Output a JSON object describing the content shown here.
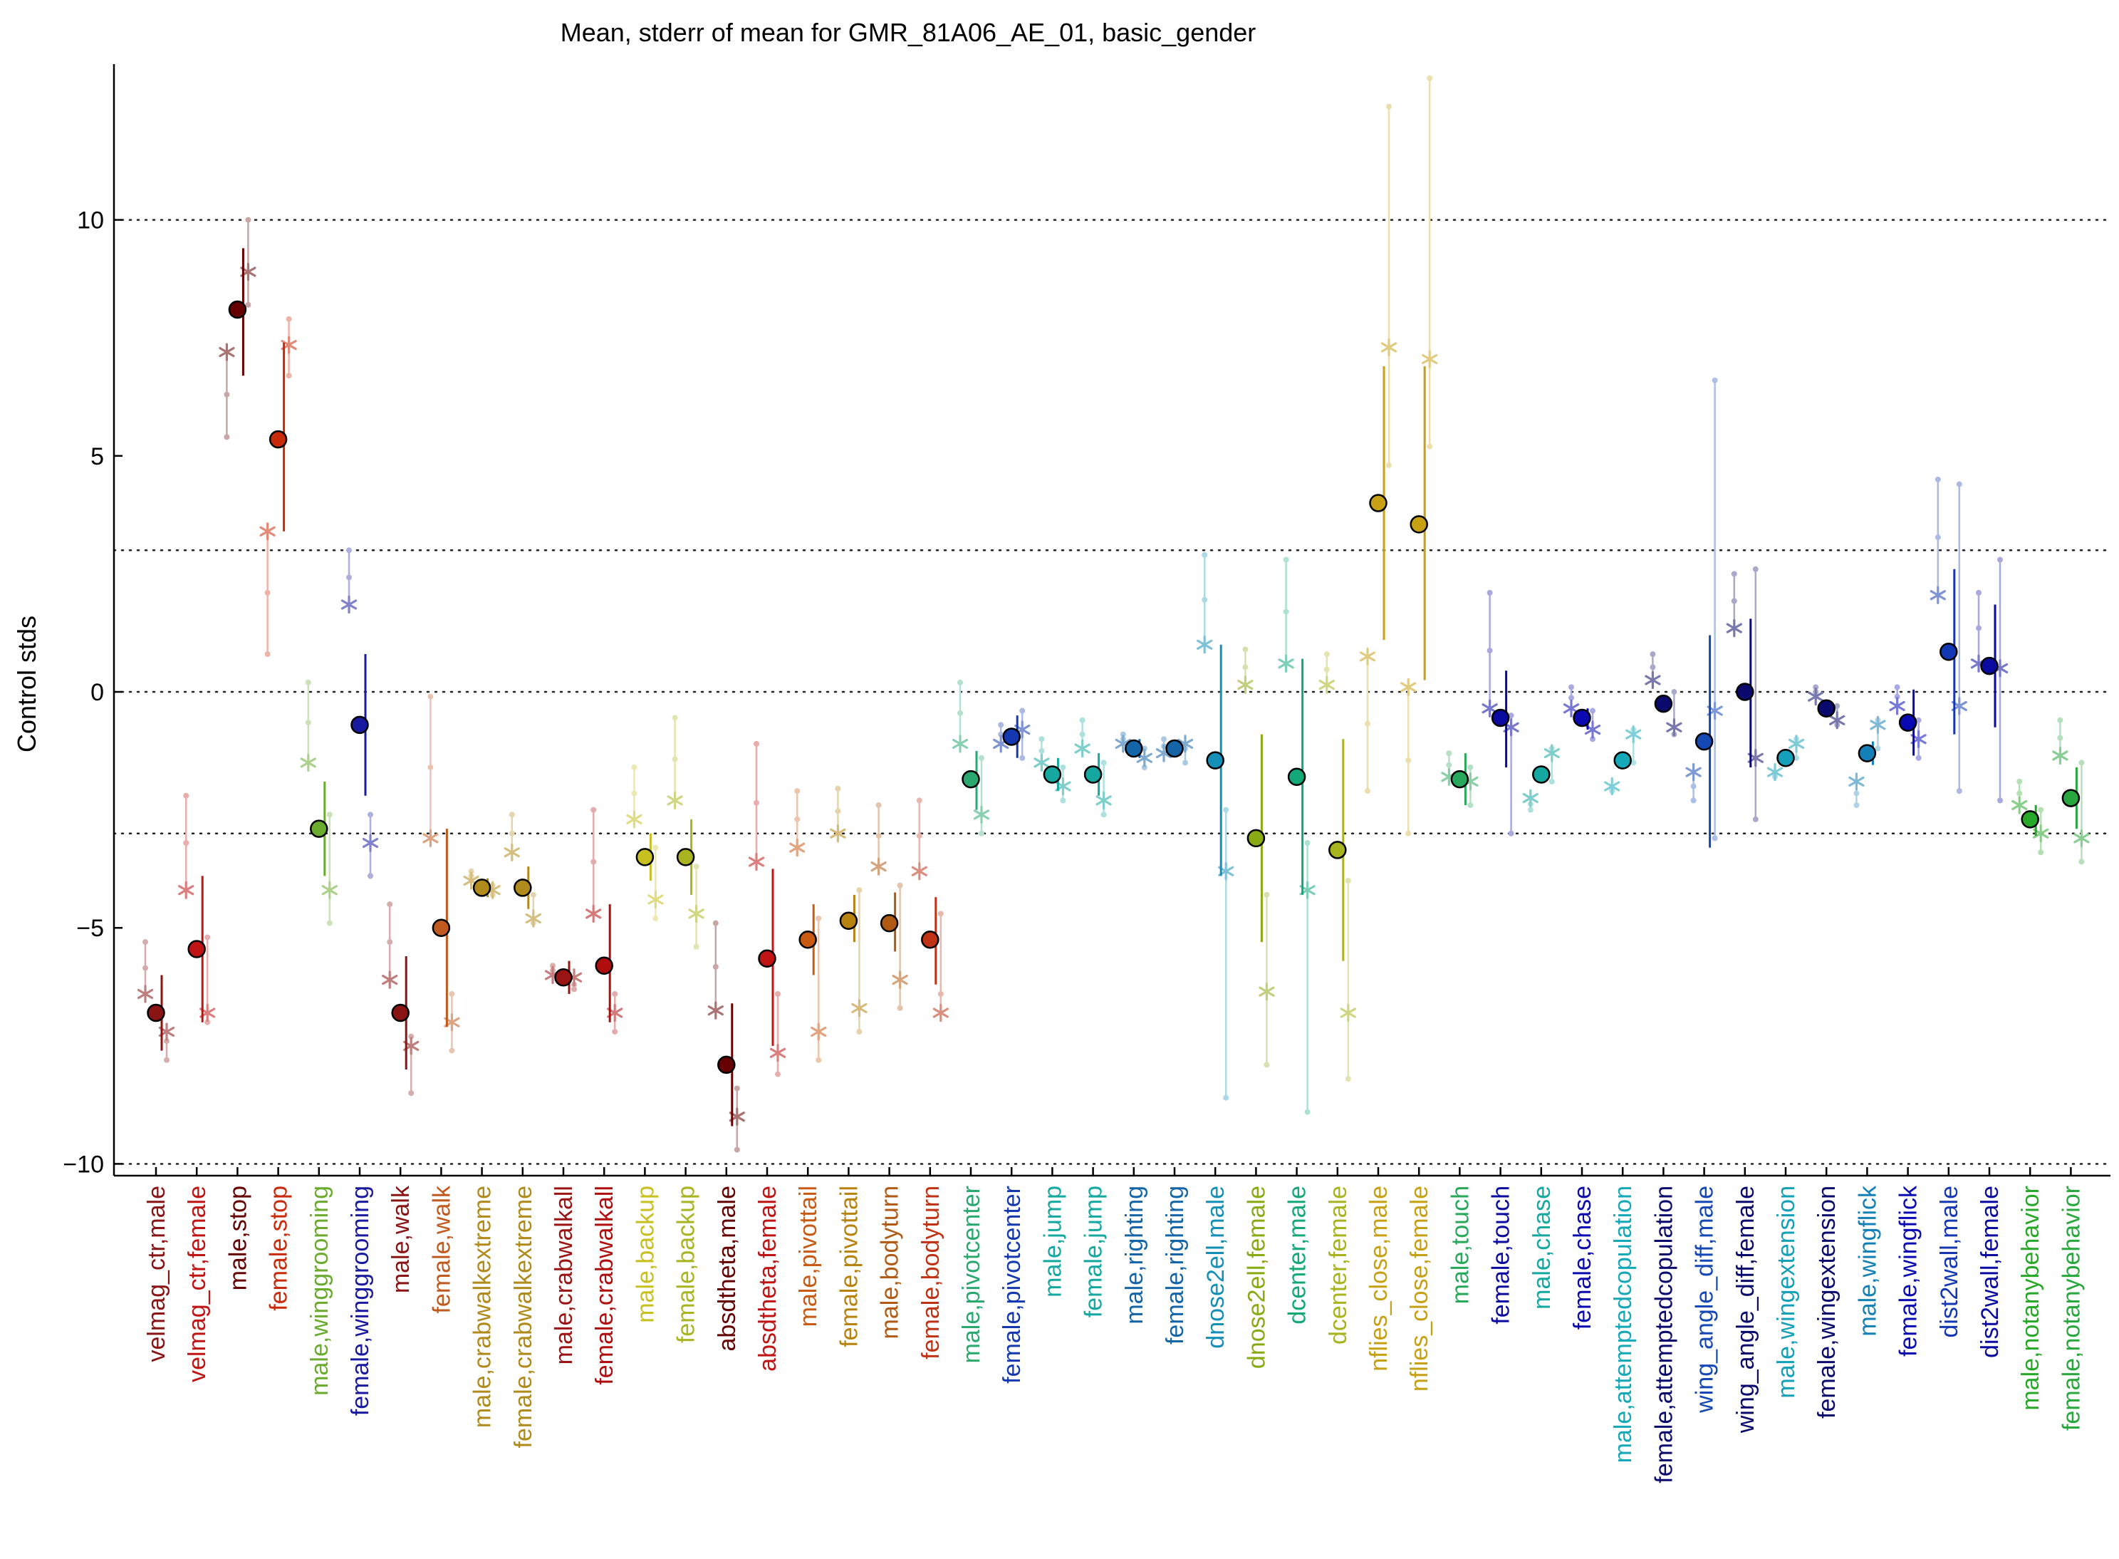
{
  "chart_data": {
    "type": "scatter",
    "title": "Mean, stderr of mean for GMR_81A06_AE_01, basic_gender",
    "ylabel": "Control stds",
    "xlabel": "",
    "ylim": [
      -10.25,
      13.3
    ],
    "yticks": [
      -10,
      -5,
      0,
      5,
      10
    ],
    "hlines": [
      -10,
      -3,
      0,
      3,
      10
    ],
    "grid": false,
    "legend": "none",
    "categories": [
      {
        "label": "velmag_ctr,male",
        "color": "#8a1414",
        "mean": -6.8,
        "lo": -7.6,
        "hi": -6.0,
        "stars": [
          -6.4,
          -7.2
        ],
        "dots": [
          -5.3,
          -7.4,
          -7.8
        ]
      },
      {
        "label": "velmag_ctr,female",
        "color": "#c01414",
        "mean": -5.45,
        "lo": -7.0,
        "hi": -3.9,
        "stars": [
          -4.2,
          -6.8
        ],
        "dots": [
          -2.2,
          -5.2,
          -7.0
        ]
      },
      {
        "label": "male,stop",
        "color": "#660000",
        "mean": 8.1,
        "lo": 6.7,
        "hi": 9.4,
        "stars": [
          7.2,
          8.9
        ],
        "dots": [
          5.4,
          10.0,
          8.2
        ]
      },
      {
        "label": "female,stop",
        "color": "#c82a0a",
        "mean": 5.35,
        "lo": 3.4,
        "hi": 7.4,
        "stars": [
          3.4,
          7.35
        ],
        "dots": [
          0.8,
          7.9,
          6.7
        ]
      },
      {
        "label": "male,winggrooming",
        "color": "#6aab2e",
        "mean": -2.9,
        "lo": -3.9,
        "hi": -1.9,
        "stars": [
          -1.5,
          -4.2
        ],
        "dots": [
          0.2,
          -4.9,
          -2.6
        ]
      },
      {
        "label": "female,winggrooming",
        "color": "#1a1aa0",
        "mean": -0.7,
        "lo": -2.2,
        "hi": 0.8,
        "stars": [
          1.85,
          -3.2
        ],
        "dots": [
          3.0,
          -3.9,
          -2.6
        ]
      },
      {
        "label": "male,walk",
        "color": "#8a1414",
        "mean": -6.8,
        "lo": -8.0,
        "hi": -5.6,
        "stars": [
          -6.1,
          -7.5
        ],
        "dots": [
          -4.5,
          -7.3,
          -8.5
        ]
      },
      {
        "label": "female,walk",
        "color": "#c05a1e",
        "mean": -5.0,
        "lo": -7.1,
        "hi": -2.9,
        "stars": [
          -3.1,
          -7.0
        ],
        "dots": [
          -0.1,
          -7.6,
          -6.4
        ]
      },
      {
        "label": "male,crabwalkextreme",
        "color": "#b08a1a",
        "mean": -4.15,
        "lo": -4.35,
        "hi": -3.95,
        "stars": [
          -4.0,
          -4.2
        ],
        "dots": [
          -3.8,
          -4.3,
          -4.1
        ]
      },
      {
        "label": "female,crabwalkextreme",
        "color": "#b08a1a",
        "mean": -4.15,
        "lo": -4.6,
        "hi": -3.7,
        "stars": [
          -3.4,
          -4.8
        ],
        "dots": [
          -2.6,
          -4.9,
          -4.3
        ]
      },
      {
        "label": "male,crabwalkall",
        "color": "#9a1414",
        "mean": -6.05,
        "lo": -6.4,
        "hi": -5.7,
        "stars": [
          -6.0,
          -6.05
        ],
        "dots": [
          -5.8,
          -6.2,
          -6.3
        ]
      },
      {
        "label": "female,crabwalkall",
        "color": "#b00e0e",
        "mean": -5.8,
        "lo": -7.0,
        "hi": -4.5,
        "stars": [
          -4.7,
          -6.8
        ],
        "dots": [
          -2.5,
          -6.4,
          -7.2
        ]
      },
      {
        "label": "male,backup",
        "color": "#c8c020",
        "mean": -3.5,
        "lo": -4.0,
        "hi": -3.0,
        "stars": [
          -2.7,
          -4.4
        ],
        "dots": [
          -1.6,
          -4.8,
          -3.3
        ]
      },
      {
        "label": "female,backup",
        "color": "#a8b420",
        "mean": -3.5,
        "lo": -4.3,
        "hi": -2.7,
        "stars": [
          -2.3,
          -4.7
        ],
        "dots": [
          -0.55,
          -5.4,
          -3.7
        ]
      },
      {
        "label": "absdtheta,male",
        "color": "#660000",
        "mean": -7.9,
        "lo": -9.2,
        "hi": -6.6,
        "stars": [
          -6.75,
          -9.0
        ],
        "dots": [
          -4.9,
          -9.7,
          -8.4
        ]
      },
      {
        "label": "absdtheta,female",
        "color": "#c01414",
        "mean": -5.65,
        "lo": -7.5,
        "hi": -3.75,
        "stars": [
          -3.6,
          -7.65
        ],
        "dots": [
          -1.1,
          -8.1,
          -6.4
        ]
      },
      {
        "label": "male,pivottail",
        "color": "#c85a14",
        "mean": -5.25,
        "lo": -6.0,
        "hi": -4.5,
        "stars": [
          -3.3,
          -7.2
        ],
        "dots": [
          -2.1,
          -7.8,
          -4.8
        ]
      },
      {
        "label": "female,pivottail",
        "color": "#b8820e",
        "mean": -4.85,
        "lo": -5.3,
        "hi": -4.3,
        "stars": [
          -3.0,
          -6.7
        ],
        "dots": [
          -2.05,
          -7.2,
          -4.2
        ]
      },
      {
        "label": "male,bodyturn",
        "color": "#b05a14",
        "mean": -4.9,
        "lo": -5.5,
        "hi": -4.25,
        "stars": [
          -3.7,
          -6.1
        ],
        "dots": [
          -2.4,
          -6.7,
          -4.1
        ]
      },
      {
        "label": "female,bodyturn",
        "color": "#c03214",
        "mean": -5.25,
        "lo": -6.2,
        "hi": -4.35,
        "stars": [
          -3.8,
          -6.8
        ],
        "dots": [
          -2.3,
          -6.4,
          -4.7
        ]
      },
      {
        "label": "male,pivotcenter",
        "color": "#2aa870",
        "mean": -1.85,
        "lo": -2.5,
        "hi": -1.25,
        "stars": [
          -1.1,
          -2.6
        ],
        "dots": [
          0.2,
          -3.0,
          -1.4
        ]
      },
      {
        "label": "female,pivotcenter",
        "color": "#1438b0",
        "mean": -0.95,
        "lo": -1.4,
        "hi": -0.5,
        "stars": [
          -1.1,
          -0.8
        ],
        "dots": [
          -0.7,
          -1.4,
          -0.4
        ]
      },
      {
        "label": "male,jump",
        "color": "#14a8a0",
        "mean": -1.75,
        "lo": -2.1,
        "hi": -1.4,
        "stars": [
          -1.5,
          -2.0
        ],
        "dots": [
          -1.0,
          -2.3,
          -1.6
        ]
      },
      {
        "label": "female,jump",
        "color": "#14a8a0",
        "mean": -1.75,
        "lo": -2.2,
        "hi": -1.3,
        "stars": [
          -1.2,
          -2.3
        ],
        "dots": [
          -0.6,
          -2.6,
          -1.5
        ]
      },
      {
        "label": "male,righting",
        "color": "#1464a8",
        "mean": -1.2,
        "lo": -1.4,
        "hi": -1.0,
        "stars": [
          -1.1,
          -1.4
        ],
        "dots": [
          -0.9,
          -1.6,
          -1.2
        ]
      },
      {
        "label": "female,righting",
        "color": "#1464a8",
        "mean": -1.2,
        "lo": -1.35,
        "hi": -1.05,
        "stars": [
          -1.3,
          -1.1
        ],
        "dots": [
          -1.0,
          -1.5,
          -1.2
        ]
      },
      {
        "label": "dnose2ell,male",
        "color": "#1490b8",
        "mean": -1.45,
        "lo": -3.9,
        "hi": 1.0,
        "stars": [
          1.0,
          -3.8
        ],
        "dots": [
          2.9,
          -8.6,
          -2.5
        ]
      },
      {
        "label": "dnose2ell,female",
        "color": "#8aaa14",
        "mean": -3.1,
        "lo": -5.3,
        "hi": -0.9,
        "stars": [
          0.15,
          -6.35
        ],
        "dots": [
          0.9,
          -7.9,
          -4.3
        ]
      },
      {
        "label": "dcenter,male",
        "color": "#14a878",
        "mean": -1.8,
        "lo": -4.3,
        "hi": 0.7,
        "stars": [
          0.6,
          -4.2
        ],
        "dots": [
          2.8,
          -8.9,
          -3.2
        ]
      },
      {
        "label": "dcenter,female",
        "color": "#a8b41e",
        "mean": -3.35,
        "lo": -5.7,
        "hi": -1.0,
        "stars": [
          0.15,
          -6.8
        ],
        "dots": [
          0.8,
          -8.2,
          -4.0
        ]
      },
      {
        "label": "nflies_close,male",
        "color": "#c8a014",
        "mean": 4.0,
        "lo": 1.1,
        "hi": 6.9,
        "stars": [
          0.75,
          7.3
        ],
        "dots": [
          -2.1,
          12.4,
          4.8
        ]
      },
      {
        "label": "nflies_close,female",
        "color": "#c8a014",
        "mean": 3.55,
        "lo": 0.25,
        "hi": 6.9,
        "stars": [
          0.1,
          7.05
        ],
        "dots": [
          -3.0,
          13.0,
          5.2
        ]
      },
      {
        "label": "male,touch",
        "color": "#28a85a",
        "mean": -1.85,
        "lo": -2.4,
        "hi": -1.3,
        "stars": [
          -1.8,
          -1.9
        ],
        "dots": [
          -1.3,
          -2.4,
          -1.6
        ]
      },
      {
        "label": "female,touch",
        "color": "#0a0aa0",
        "mean": -0.55,
        "lo": -1.6,
        "hi": 0.45,
        "stars": [
          -0.35,
          -0.75
        ],
        "dots": [
          2.1,
          -3.0,
          -0.5
        ]
      },
      {
        "label": "male,chase",
        "color": "#14a8a0",
        "mean": -1.75,
        "lo": -1.85,
        "hi": -1.65,
        "stars": [
          -2.25,
          -1.3
        ],
        "dots": [
          -2.5,
          -1.2,
          -1.9
        ]
      },
      {
        "label": "female,chase",
        "color": "#0a0ab0",
        "mean": -0.55,
        "lo": -0.8,
        "hi": -0.35,
        "stars": [
          -0.35,
          -0.8
        ],
        "dots": [
          0.1,
          -1.0,
          -0.4
        ]
      },
      {
        "label": "male,attemptedcopulation",
        "color": "#14a8b8",
        "mean": -1.45,
        "lo": -1.5,
        "hi": -1.4,
        "stars": [
          -2.0,
          -0.9
        ],
        "dots": [
          -2.1,
          -0.8,
          -1.5
        ]
      },
      {
        "label": "female,attemptedcopulation",
        "color": "#0a0a6e",
        "mean": -0.25,
        "lo": -0.35,
        "hi": -0.15,
        "stars": [
          0.25,
          -0.75
        ],
        "dots": [
          0.8,
          -0.9,
          0.0
        ]
      },
      {
        "label": "wing_angle_diff,male",
        "color": "#1448b4",
        "mean": -1.05,
        "lo": -3.3,
        "hi": 1.2,
        "stars": [
          -1.7,
          -0.4
        ],
        "dots": [
          -2.3,
          6.6,
          -3.1
        ]
      },
      {
        "label": "wing_angle_diff,female",
        "color": "#0a0a6e",
        "mean": 0.0,
        "lo": -1.6,
        "hi": 1.55,
        "stars": [
          1.35,
          -1.4
        ],
        "dots": [
          2.5,
          -2.7,
          2.6
        ]
      },
      {
        "label": "male,wingextension",
        "color": "#14a0b8",
        "mean": -1.4,
        "lo": -1.55,
        "hi": -1.3,
        "stars": [
          -1.7,
          -1.1
        ],
        "dots": [
          -1.8,
          -1.0,
          -1.4
        ]
      },
      {
        "label": "female,wingextension",
        "color": "#0a0a6e",
        "mean": -0.35,
        "lo": -0.45,
        "hi": -0.25,
        "stars": [
          -0.1,
          -0.6
        ],
        "dots": [
          0.1,
          -0.7,
          -0.3
        ]
      },
      {
        "label": "male,wingflick",
        "color": "#1480b8",
        "mean": -1.3,
        "lo": -1.55,
        "hi": -1.05,
        "stars": [
          -1.9,
          -0.7
        ],
        "dots": [
          -2.4,
          -0.6,
          -1.2
        ]
      },
      {
        "label": "female,wingflick",
        "color": "#0a0ab4",
        "mean": -0.65,
        "lo": -1.35,
        "hi": 0.05,
        "stars": [
          -0.3,
          -1.0
        ],
        "dots": [
          0.1,
          -1.4,
          -0.6
        ]
      },
      {
        "label": "dist2wall,male",
        "color": "#1438b4",
        "mean": 0.85,
        "lo": -0.9,
        "hi": 2.6,
        "stars": [
          2.05,
          -0.3
        ],
        "dots": [
          4.5,
          -2.1,
          4.4
        ]
      },
      {
        "label": "dist2wall,female",
        "color": "#0a0aa0",
        "mean": 0.55,
        "lo": -0.75,
        "hi": 1.85,
        "stars": [
          0.6,
          0.5
        ],
        "dots": [
          2.1,
          -2.3,
          2.8
        ]
      },
      {
        "label": "male,notanybehavior",
        "color": "#28a828",
        "mean": -2.7,
        "lo": -3.05,
        "hi": -2.4,
        "stars": [
          -2.4,
          -3.0
        ],
        "dots": [
          -1.9,
          -3.4,
          -2.5
        ]
      },
      {
        "label": "female,notanybehavior",
        "color": "#28a83c",
        "mean": -2.25,
        "lo": -2.9,
        "hi": -1.6,
        "stars": [
          -1.35,
          -3.1
        ],
        "dots": [
          -0.6,
          -3.6,
          -1.5
        ]
      }
    ]
  }
}
